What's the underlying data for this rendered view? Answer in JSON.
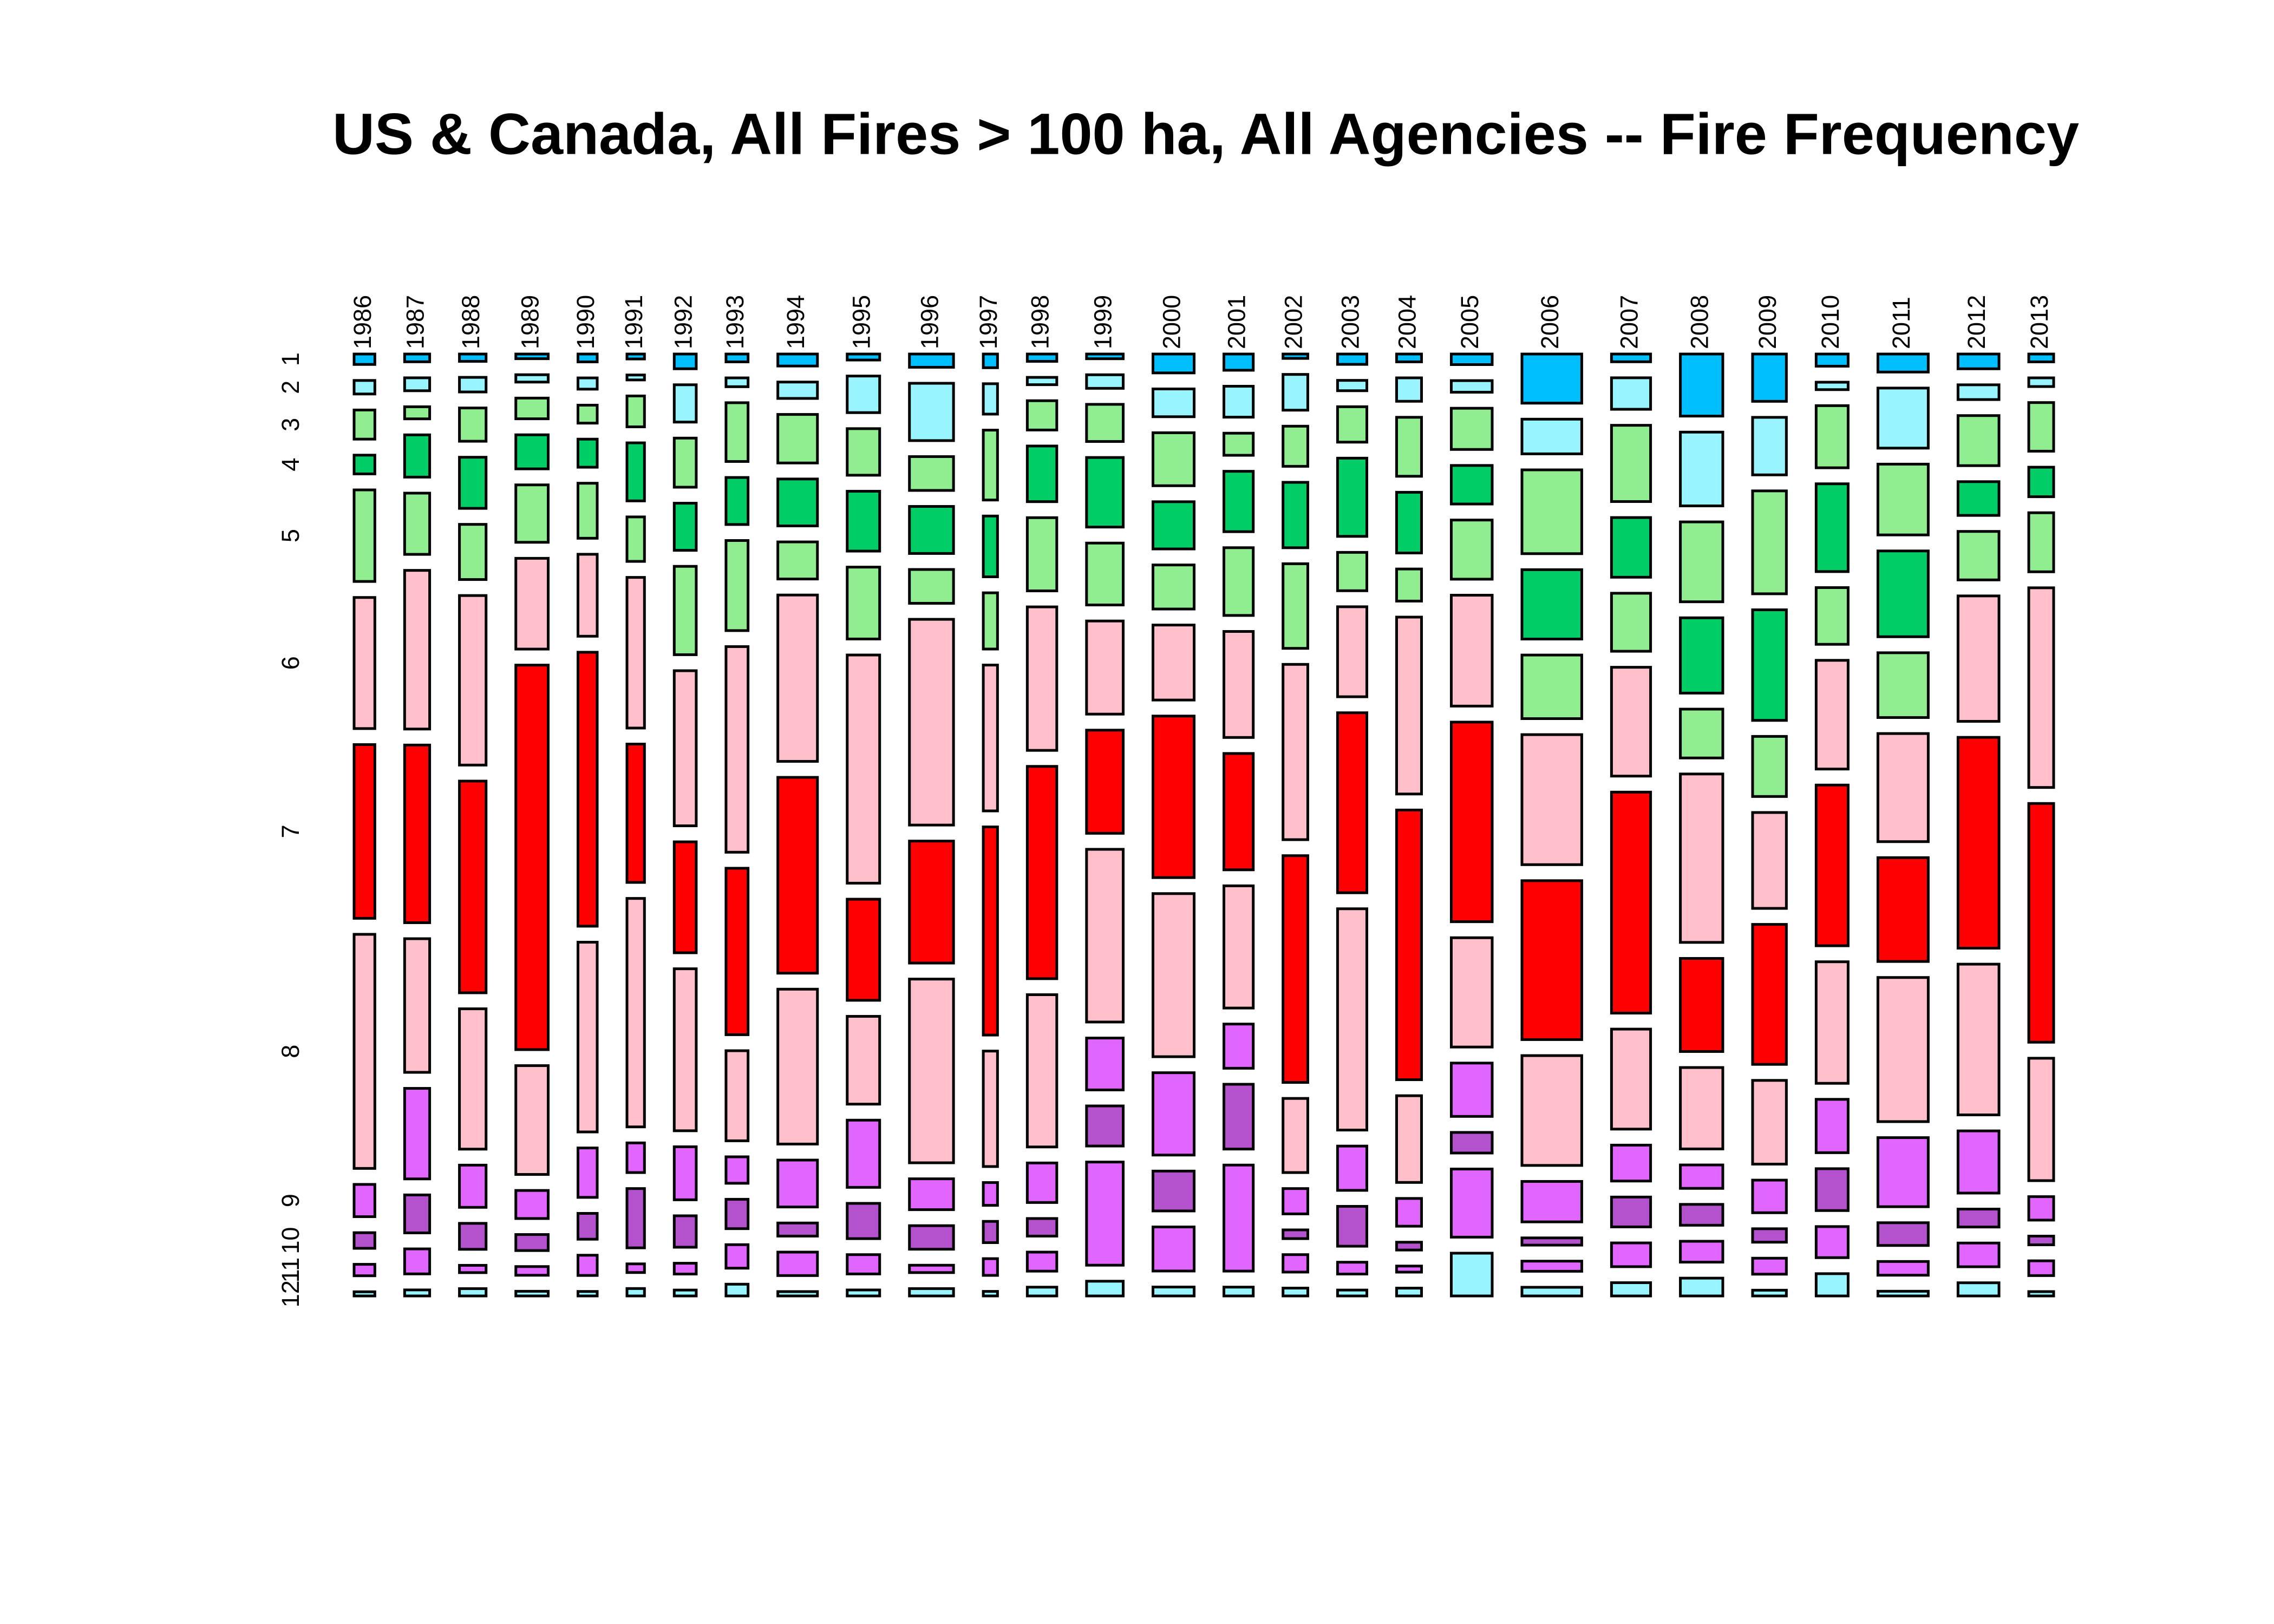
{
  "chart_data": {
    "type": "mosaic",
    "title": "US & Canada, All Fires > 100 ha, All Agencies -- Fire Frequency",
    "categories": [
      "1986",
      "1987",
      "1988",
      "1989",
      "1990",
      "1991",
      "1992",
      "1993",
      "1994",
      "1995",
      "1996",
      "1997",
      "1998",
      "1999",
      "2000",
      "2001",
      "2002",
      "2003",
      "2004",
      "2005",
      "2006",
      "2007",
      "2008",
      "2009",
      "2010",
      "2011",
      "2012",
      "2013"
    ],
    "series": [
      {
        "name": "1",
        "color": "#00bfff",
        "values": [
          10,
          9,
          9,
          7,
          7,
          4,
          15,
          8,
          22,
          9,
          27,
          9,
          10,
          8,
          36,
          22,
          5,
          14,
          9,
          20,
          136,
          14,
          122,
          74,
          18,
          42,
          28,
          9
        ]
      },
      {
        "name": "2",
        "color": "#98f5ff",
        "values": [
          13,
          15,
          18,
          11,
          10,
          4,
          38,
          9,
          30,
          55,
          117,
          20,
          10,
          23,
          53,
          42,
          41,
          14,
          27,
          22,
          96,
          57,
          145,
          90,
          11,
          140,
          28,
          10
        ]
      },
      {
        "name": "3",
        "color": "#90ee90",
        "values": [
          28,
          14,
          41,
          31,
          16,
          25,
          50,
          60,
          89,
          70,
          69,
          46,
          40,
          63,
          101,
          30,
          46,
          48,
          68,
          78,
          232,
          138,
          157,
          161,
          92,
          165,
          95,
          56
        ]
      },
      {
        "name": "4",
        "color": "#00cd66",
        "values": [
          18,
          49,
          63,
          51,
          25,
          47,
          48,
          48,
          86,
          90,
          96,
          40,
          76,
          118,
          90,
          82,
          75,
          106,
          70,
          73,
          192,
          108,
          148,
          173,
          130,
          200,
          64,
          34
        ]
      },
      {
        "name": "5",
        "color": "#90ee90",
        "values": [
          88,
          71,
          68,
          86,
          49,
          36,
          90,
          92,
          68,
          108,
          69,
          37,
          100,
          105,
          84,
          92,
          97,
          52,
          37,
          112,
          176,
          105,
          96,
          94,
          84,
          151,
          92,
          68
        ]
      },
      {
        "name": "6",
        "color": "#ffc0cb",
        "values": [
          126,
          184,
          209,
          136,
          73,
          122,
          158,
          210,
          305,
          343,
          420,
          96,
          196,
          158,
          143,
          144,
          201,
          122,
          204,
          210,
          360,
          197,
          331,
          150,
          161,
          252,
          238,
          230
        ]
      },
      {
        "name": "7",
        "color": "#ff0000",
        "values": [
          167,
          206,
          261,
          576,
          244,
          112,
          113,
          170,
          359,
          152,
          249,
          137,
          290,
          175,
          308,
          158,
          260,
          244,
          311,
          378,
          440,
          400,
          183,
          219,
          238,
          242,
          400,
          275
        ]
      },
      {
        "name": "8",
        "color": "#ffc0cb",
        "values": [
          225,
          155,
          173,
          163,
          169,
          185,
          165,
          92,
          284,
          132,
          375,
          76,
          208,
          293,
          311,
          166,
          85,
          300,
          100,
          207,
          304,
          181,
          160,
          131,
          180,
          336,
          286,
          141
        ]
      },
      {
        "name": "9",
        "color": "#e066ff",
        "values": [
          31,
          105,
          52,
          42,
          44,
          24,
          54,
          27,
          86,
          101,
          63,
          15,
          54,
          88,
          157,
          60,
          29,
          60,
          32,
          101,
          112,
          65,
          46,
          51,
          79,
          161,
          118,
          27
        ]
      },
      {
        "name": "10",
        "color": "#b452cd",
        "values": [
          15,
          44,
          32,
          24,
          23,
          48,
          32,
          30,
          24,
          53,
          48,
          14,
          24,
          68,
          76,
          88,
          10,
          54,
          9,
          39,
          20,
          54,
          41,
          21,
          62,
          53,
          34,
          10
        ]
      },
      {
        "name": "11",
        "color": "#e066ff",
        "values": [
          11,
          29,
          9,
          13,
          18,
          7,
          11,
          24,
          43,
          29,
          15,
          11,
          26,
          175,
          84,
          144,
          20,
          16,
          7,
          129,
          28,
          43,
          41,
          25,
          46,
          32,
          45,
          17
        ]
      },
      {
        "name": "12",
        "color": "#98f5ff",
        "values": [
          4,
          7,
          9,
          7,
          4,
          6,
          6,
          12,
          8,
          9,
          15,
          3,
          12,
          25,
          17,
          12,
          9,
          8,
          9,
          81,
          24,
          24,
          35,
          9,
          33,
          11,
          25,
          5
        ]
      }
    ]
  }
}
